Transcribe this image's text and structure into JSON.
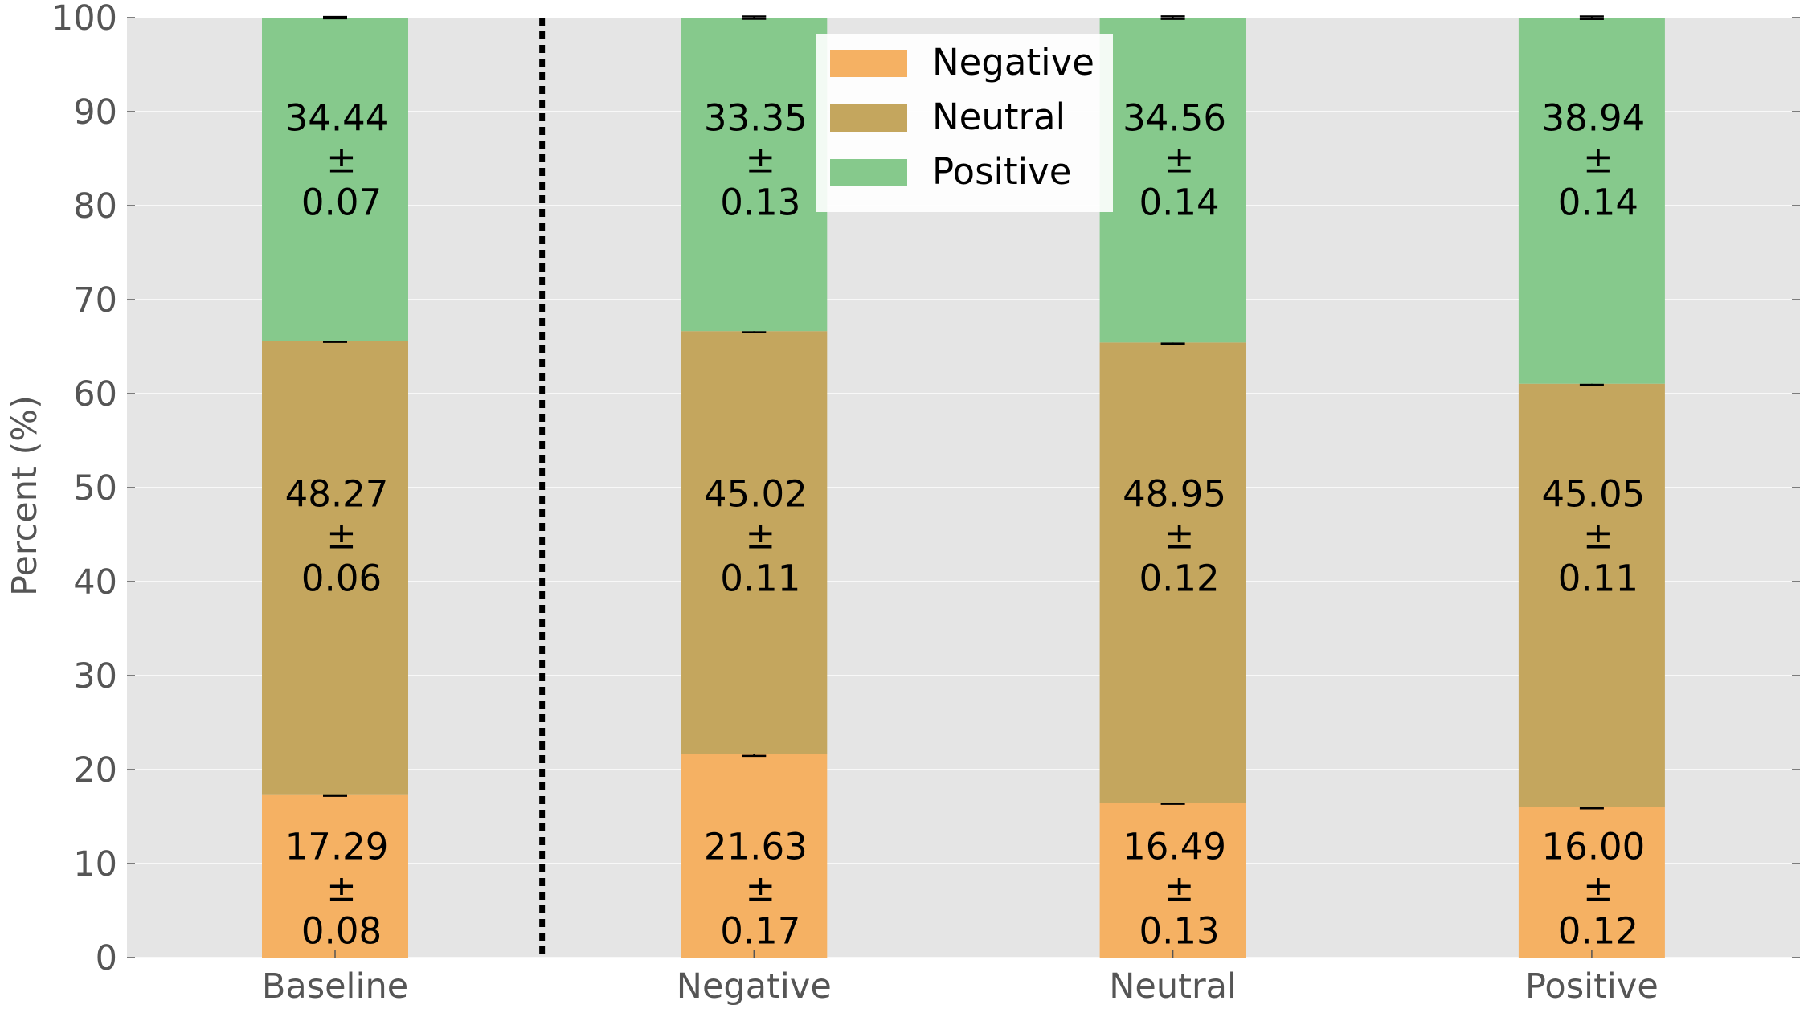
{
  "chart_data": {
    "type": "bar",
    "stacked": true,
    "categories": [
      "Baseline",
      "Negative",
      "Neutral",
      "Positive"
    ],
    "series": [
      {
        "name": "Negative",
        "color": "#f5b163",
        "values": [
          17.29,
          21.63,
          16.49,
          16.0
        ],
        "errors": [
          0.08,
          0.17,
          0.13,
          0.12
        ]
      },
      {
        "name": "Neutral",
        "color": "#c4a65e",
        "values": [
          48.27,
          45.02,
          48.95,
          45.05
        ],
        "errors": [
          0.06,
          0.11,
          0.12,
          0.11
        ]
      },
      {
        "name": "Positive",
        "color": "#86c98c",
        "values": [
          34.44,
          33.35,
          34.56,
          38.94
        ],
        "errors": [
          0.07,
          0.13,
          0.14,
          0.14
        ]
      }
    ],
    "ylabel": "Percent (%)",
    "ylim": [
      0,
      100
    ],
    "yticks": [
      "0",
      "10",
      "20",
      "30",
      "40",
      "50",
      "60",
      "70",
      "80",
      "90",
      "100"
    ],
    "pm_symbol": "±",
    "grid": true,
    "legend_position": "top-center",
    "separator_after_category": "Baseline"
  }
}
